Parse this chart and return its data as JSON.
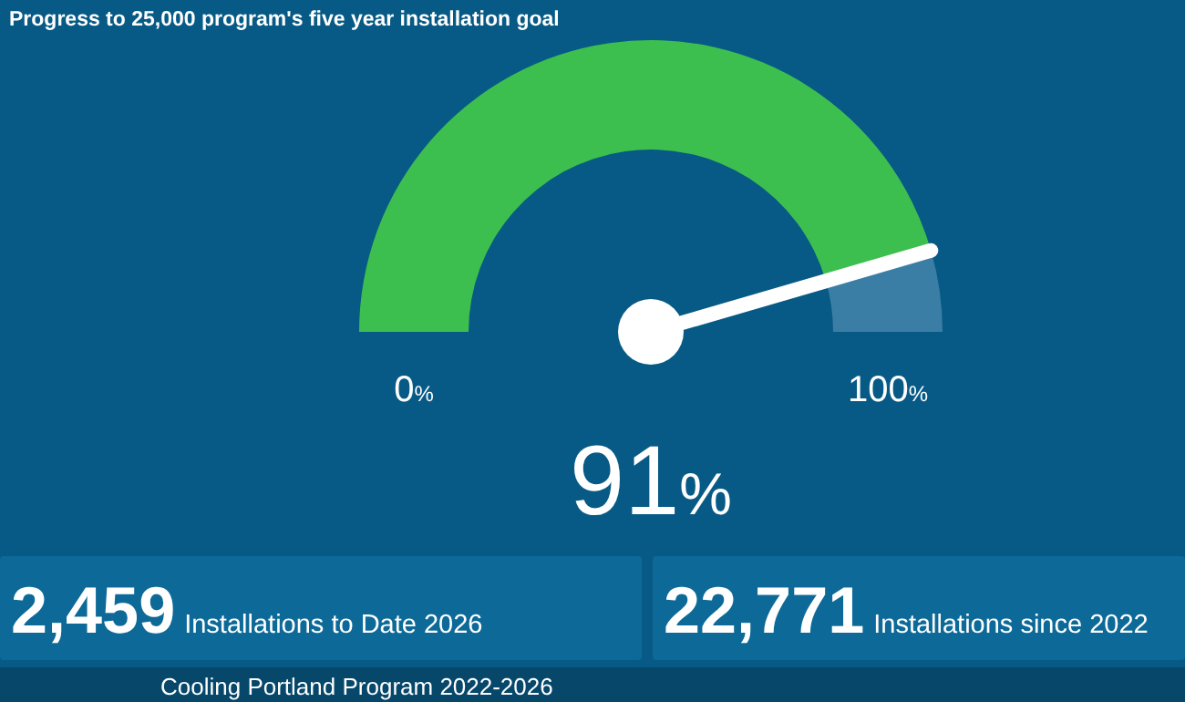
{
  "chart_data": {
    "type": "donut",
    "title": "Progress to 25,000 program's five year installation goal",
    "categories": [
      null,
      null
    ],
    "values": [
      91,
      9
    ],
    "colors": [
      "#3dbf4f",
      "#3a7ea6"
    ],
    "annotations": [
      "0%",
      "100%",
      "91%",
      "2,459",
      "Installations to Date 2026",
      "22,771",
      "Installations since 2022",
      "Cooling Portland Program 2022-2026"
    ]
  }
}
